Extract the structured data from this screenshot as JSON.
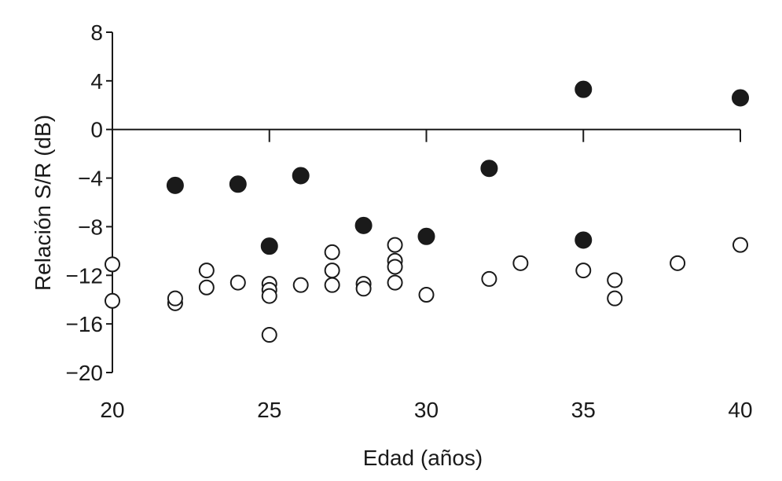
{
  "chart_data": {
    "type": "scatter",
    "title": "",
    "xlabel": "Edad (años)",
    "ylabel": "Relación S/R (dB)",
    "xlim": [
      20,
      40
    ],
    "ylim": [
      -20,
      8
    ],
    "x_ticks": [
      20,
      25,
      30,
      35,
      40
    ],
    "y_ticks": [
      8,
      4,
      0,
      -4,
      -8,
      -12,
      -16,
      -20
    ],
    "x_tick_labels": [
      "20",
      "25",
      "30",
      "35",
      "40"
    ],
    "y_tick_labels": [
      "8",
      "4",
      "0",
      "−4",
      "−8",
      "−12",
      "−16",
      "−20"
    ],
    "grid": false,
    "legend": "none",
    "reference_line_y": 0,
    "series": [
      {
        "marker": "filled-circle",
        "color": "#1a1a1a",
        "points": [
          {
            "x": 22,
            "y": -4.6
          },
          {
            "x": 24,
            "y": -4.5
          },
          {
            "x": 25,
            "y": -9.6
          },
          {
            "x": 26,
            "y": -3.8
          },
          {
            "x": 28,
            "y": -7.9
          },
          {
            "x": 30,
            "y": -8.8
          },
          {
            "x": 32,
            "y": -3.2
          },
          {
            "x": 35,
            "y": 3.3
          },
          {
            "x": 35,
            "y": -9.1
          },
          {
            "x": 40,
            "y": 2.6
          }
        ]
      },
      {
        "marker": "open-circle",
        "color": "#1a1a1a",
        "points": [
          {
            "x": 20,
            "y": -11.1
          },
          {
            "x": 20,
            "y": -14.1
          },
          {
            "x": 22,
            "y": -14.3
          },
          {
            "x": 22,
            "y": -13.9
          },
          {
            "x": 23,
            "y": -11.6
          },
          {
            "x": 23,
            "y": -13.0
          },
          {
            "x": 24,
            "y": -12.6
          },
          {
            "x": 25,
            "y": -12.7
          },
          {
            "x": 25,
            "y": -13.2
          },
          {
            "x": 25,
            "y": -13.7
          },
          {
            "x": 25,
            "y": -16.9
          },
          {
            "x": 26,
            "y": -12.8
          },
          {
            "x": 27,
            "y": -10.1
          },
          {
            "x": 27,
            "y": -11.6
          },
          {
            "x": 27,
            "y": -12.8
          },
          {
            "x": 28,
            "y": -12.7
          },
          {
            "x": 28,
            "y": -13.1
          },
          {
            "x": 29,
            "y": -9.5
          },
          {
            "x": 29,
            "y": -10.8
          },
          {
            "x": 29,
            "y": -11.3
          },
          {
            "x": 29,
            "y": -12.6
          },
          {
            "x": 30,
            "y": -13.6
          },
          {
            "x": 32,
            "y": -12.3
          },
          {
            "x": 33,
            "y": -11.0
          },
          {
            "x": 35,
            "y": -11.6
          },
          {
            "x": 36,
            "y": -12.4
          },
          {
            "x": 36,
            "y": -13.9
          },
          {
            "x": 38,
            "y": -11.0
          },
          {
            "x": 40,
            "y": -9.5
          }
        ]
      }
    ]
  }
}
